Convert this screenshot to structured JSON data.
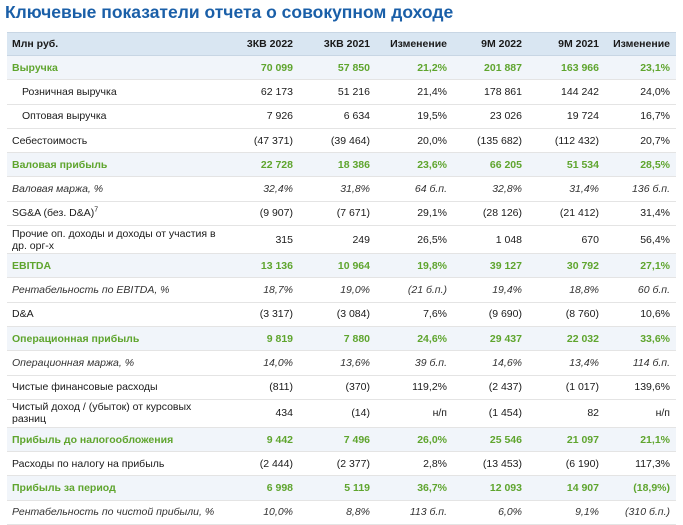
{
  "title": "Ключевые показатели отчета о совокупном доходе",
  "header": [
    "Млн руб.",
    "3КВ 2022",
    "3КВ 2021",
    "Изменение",
    "9М 2022",
    "9М 2021",
    "Изменение"
  ],
  "rows": [
    {
      "label": "Выручка",
      "style": "bold",
      "values": [
        "70 099",
        "57 850",
        "21,2%",
        "201 887",
        "163 966",
        "23,1%"
      ]
    },
    {
      "label": "Розничная выручка",
      "style": "indent",
      "values": [
        "62 173",
        "51 216",
        "21,4%",
        "178 861",
        "144 242",
        "24,0%"
      ]
    },
    {
      "label": "Оптовая выручка",
      "style": "indent",
      "values": [
        "7 926",
        "6 634",
        "19,5%",
        "23 026",
        "19 724",
        "16,7%"
      ]
    },
    {
      "label": "Себестоимость",
      "style": "normal",
      "values": [
        "(47 371)",
        "(39 464)",
        "20,0%",
        "(135 682)",
        "(112 432)",
        "20,7%"
      ]
    },
    {
      "label": "Валовая прибыль",
      "style": "bold",
      "values": [
        "22 728",
        "18 386",
        "23,6%",
        "66 205",
        "51 534",
        "28,5%"
      ]
    },
    {
      "label": "Валовая маржа, %",
      "style": "italic",
      "values": [
        "32,4%",
        "31,8%",
        "64 б.п.",
        "32,8%",
        "31,4%",
        "136 б.п."
      ]
    },
    {
      "label": "SG&A (без. D&A)",
      "sup": "7",
      "style": "normal",
      "values": [
        "(9 907)",
        "(7 671)",
        "29,1%",
        "(28 126)",
        "(21 412)",
        "31,4%"
      ]
    },
    {
      "label": "Прочие оп. доходы и доходы от участия в др. орг-х",
      "style": "tall",
      "values": [
        "315",
        "249",
        "26,5%",
        "1 048",
        "670",
        "56,4%"
      ]
    },
    {
      "label": "EBITDA",
      "style": "bold",
      "values": [
        "13 136",
        "10 964",
        "19,8%",
        "39 127",
        "30 792",
        "27,1%"
      ]
    },
    {
      "label": "Рентабельность по EBITDA, %",
      "style": "italic",
      "values": [
        "18,7%",
        "19,0%",
        "(21 б.п.)",
        "19,4%",
        "18,8%",
        "60 б.п."
      ]
    },
    {
      "label": "D&A",
      "style": "normal",
      "values": [
        "(3 317)",
        "(3 084)",
        "7,6%",
        "(9 690)",
        "(8 760)",
        "10,6%"
      ]
    },
    {
      "label": "Операционная прибыль",
      "style": "bold",
      "values": [
        "9 819",
        "7 880",
        "24,6%",
        "29 437",
        "22 032",
        "33,6%"
      ]
    },
    {
      "label": "Операционная маржа, %",
      "style": "italic",
      "values": [
        "14,0%",
        "13,6%",
        "39 б.п.",
        "14,6%",
        "13,4%",
        "114 б.п."
      ]
    },
    {
      "label": "Чистые финансовые расходы",
      "style": "normal",
      "values": [
        "(811)",
        "(370)",
        "119,2%",
        "(2 437)",
        "(1 017)",
        "139,6%"
      ]
    },
    {
      "label": "Чистый доход / (убыток) от курсовых разниц",
      "style": "tall",
      "values": [
        "434",
        "(14)",
        "н/п",
        "(1 454)",
        "82",
        "н/п"
      ]
    },
    {
      "label": "Прибыль до налогообложения",
      "style": "bold",
      "values": [
        "9 442",
        "7 496",
        "26,0%",
        "25 546",
        "21 097",
        "21,1%"
      ]
    },
    {
      "label": "Расходы по налогу на прибыль",
      "style": "normal",
      "values": [
        "(2 444)",
        "(2 377)",
        "2,8%",
        "(13 453)",
        "(6 190)",
        "117,3%"
      ]
    },
    {
      "label": "Прибыль за период",
      "style": "bold",
      "values": [
        "6 998",
        "5 119",
        "36,7%",
        "12 093",
        "14 907",
        "(18,9%)"
      ]
    },
    {
      "label": "Рентабельность по чистой прибыли, %",
      "style": "italic",
      "values": [
        "10,0%",
        "8,8%",
        "113 б.п.",
        "6,0%",
        "9,1%",
        "(310 б.п.)"
      ]
    }
  ]
}
